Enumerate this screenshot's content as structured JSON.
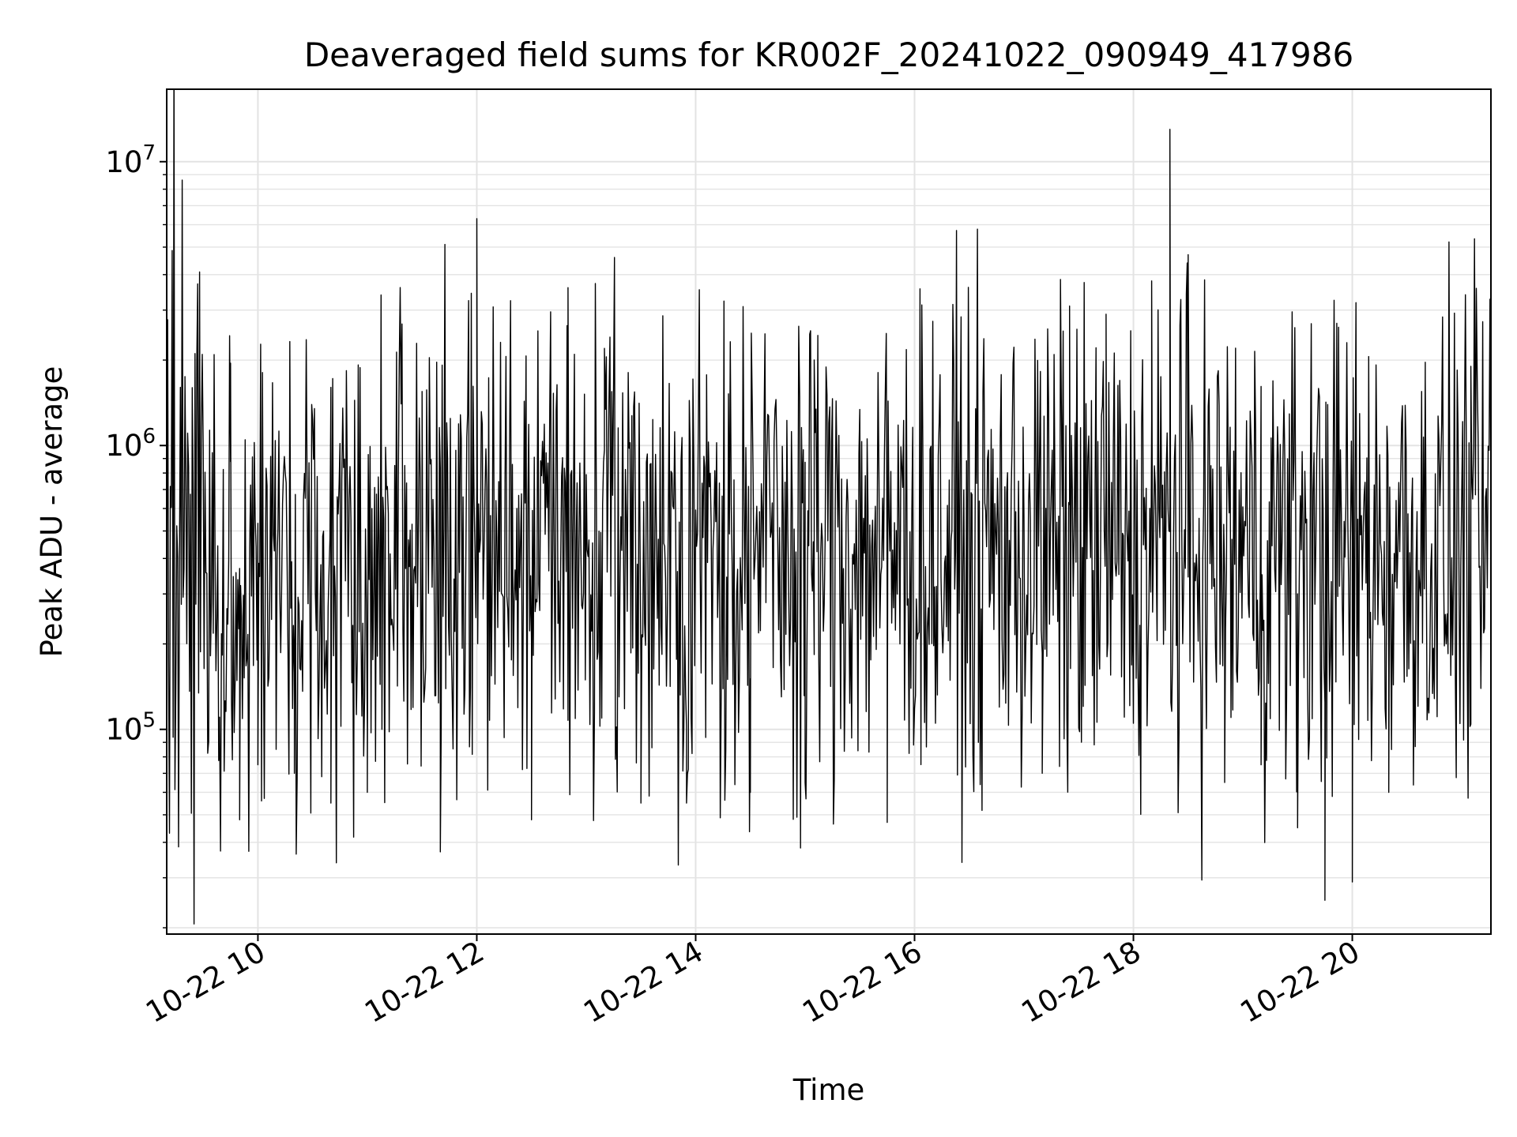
{
  "chart_data": {
    "type": "line",
    "title": "Deaveraged field sums for KR002F_20241022_090949_417986",
    "xlabel": "Time",
    "ylabel": "Peak ADU - average",
    "x_axis": {
      "kind": "datetime",
      "range": [
        "2024-10-22T09:10",
        "2024-10-22T21:16"
      ],
      "tick_values": [
        "2024-10-22T10:00",
        "2024-10-22T12:00",
        "2024-10-22T14:00",
        "2024-10-22T16:00",
        "2024-10-22T18:00",
        "2024-10-22T20:00"
      ],
      "tick_labels": [
        "10-22 10",
        "10-22 12",
        "10-22 14",
        "10-22 16",
        "10-22 18",
        "10-22 20"
      ]
    },
    "y_axis": {
      "scale": "log",
      "range": [
        19000,
        18000000
      ],
      "major_tick_values": [
        100000,
        1000000,
        10000000
      ],
      "major_tick_labels": [
        {
          "base": "10",
          "exp": "5"
        },
        {
          "base": "10",
          "exp": "6"
        },
        {
          "base": "10",
          "exp": "7"
        }
      ]
    },
    "grid": true,
    "line_color": "#000000",
    "series": [
      {
        "points": [
          [
            "2024-10-22T09:10",
            300000
          ],
          [
            "2024-10-22T09:20",
            1750000
          ],
          [
            "2024-10-22T09:45",
            1950000
          ],
          [
            "2024-10-22T09:50",
            48000
          ],
          [
            "2024-10-22T10:00",
            75000
          ],
          [
            "2024-10-22T10:20",
            70000
          ],
          [
            "2024-10-22T10:40",
            55000
          ],
          [
            "2024-10-22T11:00",
            60000
          ],
          [
            "2024-10-22T11:30",
            1550000
          ],
          [
            "2024-10-22T11:40",
            37000
          ],
          [
            "2024-10-22T12:00",
            6300000
          ],
          [
            "2024-10-22T12:30",
            48000
          ],
          [
            "2024-10-22T12:50",
            3600000
          ],
          [
            "2024-10-22T13:10",
            2200000
          ],
          [
            "2024-10-22T13:30",
            55000
          ],
          [
            "2024-10-22T13:55",
            55000
          ],
          [
            "2024-10-22T14:30",
            60000
          ],
          [
            "2024-10-22T15:00",
            65000
          ],
          [
            "2024-10-22T15:05",
            2000000
          ],
          [
            "2024-10-22T15:45",
            47000
          ],
          [
            "2024-10-22T16:35",
            90000
          ],
          [
            "2024-10-22T17:10",
            70000
          ],
          [
            "2024-10-22T17:25",
            3100000
          ],
          [
            "2024-10-22T17:45",
            2900000
          ],
          [
            "2024-10-22T18:10",
            3800000
          ],
          [
            "2024-10-22T18:20",
            13000000
          ],
          [
            "2024-10-22T18:30",
            4700000
          ],
          [
            "2024-10-22T18:50",
            65000
          ],
          [
            "2024-10-22T19:10",
            75000
          ],
          [
            "2024-10-22T19:30",
            45000
          ],
          [
            "2024-10-22T19:45",
            25000
          ],
          [
            "2024-10-22T20:00",
            29000
          ],
          [
            "2024-10-22T20:20",
            60000
          ],
          [
            "2024-10-22T20:40",
            1700000
          ],
          [
            "2024-10-22T21:05",
            1900000
          ],
          [
            "2024-10-22T21:16",
            550000
          ]
        ]
      }
    ]
  }
}
